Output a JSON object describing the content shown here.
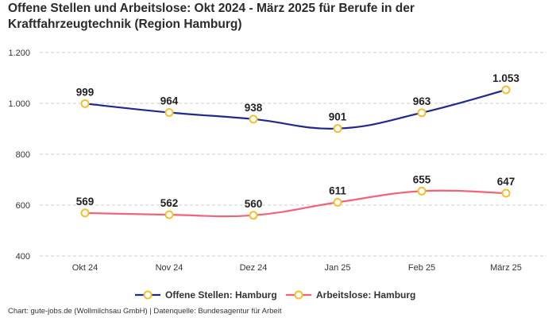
{
  "title": "Offene Stellen und Arbeitslose: Okt 2024 - März 2025 für Berufe in der Kraftfahrzeugtechnik (Region Hamburg)",
  "footer": "Chart: gute-jobs.de (Wollmilchsau GmbH) | Datenquelle: Bundesagentur für Arbeit",
  "colors": {
    "marker_stroke": "#f2c12e",
    "grid": "#cccccc"
  },
  "chart_data": {
    "type": "line",
    "title": "Offene Stellen und Arbeitslose: Okt 2024 - März 2025 für Berufe in der Kraftfahrzeugtechnik (Region Hamburg)",
    "xlabel": "",
    "ylabel": "",
    "categories": [
      "Okt 24",
      "Nov 24",
      "Dez 24",
      "Jan 25",
      "Feb 25",
      "März 25"
    ],
    "ylim": [
      400,
      1200
    ],
    "yticks": [
      400,
      600,
      800,
      1000,
      1200
    ],
    "ytick_labels": [
      "400",
      "600",
      "800",
      "1.000",
      "1.200"
    ],
    "grid": true,
    "legend_position": "bottom-center",
    "series": [
      {
        "name": "Offene Stellen: Hamburg",
        "color": "#1f2a8c",
        "values": [
          999,
          964,
          938,
          901,
          963,
          1053
        ],
        "labels": [
          "999",
          "964",
          "938",
          "901",
          "963",
          "1.053"
        ]
      },
      {
        "name": "Arbeitslose: Hamburg",
        "color": "#f0647a",
        "values": [
          569,
          562,
          560,
          611,
          655,
          647
        ],
        "labels": [
          "569",
          "562",
          "560",
          "611",
          "655",
          "647"
        ]
      }
    ]
  }
}
